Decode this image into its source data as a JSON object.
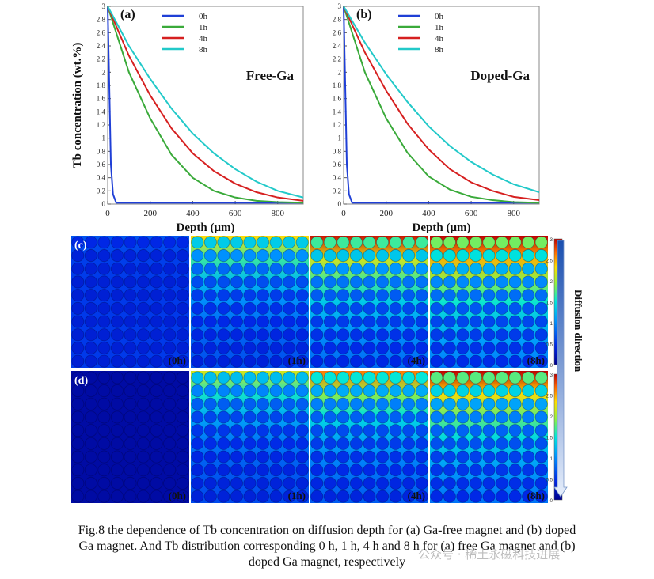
{
  "chart_data": [
    {
      "type": "line",
      "panel_label": "(a)",
      "annotation": "Free-Ga",
      "xlabel": "Depth  (μm)",
      "ylabel": "Tb concentration   (wt.%)",
      "xlim": [
        0,
        920
      ],
      "ylim": [
        0,
        3
      ],
      "xticks": [
        "0",
        "200",
        "400",
        "600",
        "800"
      ],
      "yticks": [
        "0",
        "0.2",
        "0.4",
        "0.6",
        "0.8",
        "1",
        "1.2",
        "1.4",
        "1.6",
        "1.8",
        "2",
        "2.2",
        "2.4",
        "2.6",
        "2.8",
        "3"
      ],
      "legend_position": "top-center",
      "series": [
        {
          "name": "0h",
          "color": "#1f3fd6",
          "x": [
            0,
            15,
            25,
            40,
            920
          ],
          "y": [
            3,
            0.6,
            0.15,
            0.02,
            0.02
          ]
        },
        {
          "name": "1h",
          "color": "#3aaa3a",
          "x": [
            0,
            100,
            200,
            300,
            400,
            500,
            600,
            700,
            800,
            920
          ],
          "y": [
            3,
            2.0,
            1.3,
            0.75,
            0.4,
            0.2,
            0.1,
            0.05,
            0.03,
            0.02
          ]
        },
        {
          "name": "4h",
          "color": "#d62020",
          "x": [
            0,
            100,
            200,
            300,
            400,
            500,
            600,
            700,
            800,
            920
          ],
          "y": [
            3,
            2.25,
            1.65,
            1.15,
            0.77,
            0.5,
            0.31,
            0.18,
            0.1,
            0.05
          ]
        },
        {
          "name": "8h",
          "color": "#22c9c9",
          "x": [
            0,
            100,
            200,
            300,
            400,
            500,
            600,
            700,
            800,
            920
          ],
          "y": [
            3,
            2.4,
            1.9,
            1.45,
            1.07,
            0.77,
            0.53,
            0.34,
            0.2,
            0.1
          ]
        }
      ]
    },
    {
      "type": "line",
      "panel_label": "(b)",
      "annotation": "Doped-Ga",
      "xlabel": "Depth  (μm)",
      "ylabel": "",
      "xlim": [
        0,
        920
      ],
      "ylim": [
        0,
        3
      ],
      "xticks": [
        "0",
        "200",
        "400",
        "600",
        "800"
      ],
      "yticks": [
        "0",
        "0.2",
        "0.4",
        "0.6",
        "0.8",
        "1",
        "1.2",
        "1.4",
        "1.6",
        "1.8",
        "2",
        "2.2",
        "2.4",
        "2.6",
        "2.8",
        "3"
      ],
      "legend_position": "top-center",
      "series": [
        {
          "name": "0h",
          "color": "#1f3fd6",
          "x": [
            0,
            15,
            25,
            40,
            920
          ],
          "y": [
            3,
            0.6,
            0.15,
            0.02,
            0.02
          ]
        },
        {
          "name": "1h",
          "color": "#3aaa3a",
          "x": [
            0,
            100,
            200,
            300,
            400,
            500,
            600,
            700,
            800,
            920
          ],
          "y": [
            3,
            2.0,
            1.3,
            0.78,
            0.42,
            0.22,
            0.11,
            0.06,
            0.03,
            0.02
          ]
        },
        {
          "name": "4h",
          "color": "#d62020",
          "x": [
            0,
            100,
            200,
            300,
            400,
            500,
            600,
            700,
            800,
            920
          ],
          "y": [
            3,
            2.3,
            1.72,
            1.22,
            0.83,
            0.53,
            0.33,
            0.2,
            0.11,
            0.06
          ]
        },
        {
          "name": "8h",
          "color": "#22c9c9",
          "x": [
            0,
            100,
            200,
            300,
            400,
            500,
            600,
            700,
            800,
            920
          ],
          "y": [
            3,
            2.45,
            1.97,
            1.55,
            1.18,
            0.88,
            0.64,
            0.45,
            0.3,
            0.18
          ]
        }
      ]
    }
  ],
  "simulation": {
    "rows": [
      {
        "label": "(c)",
        "intensities": [
          0.05,
          0.6,
          0.8,
          0.9
        ]
      },
      {
        "label": "(d)",
        "intensities": [
          0.0,
          0.55,
          0.7,
          0.85
        ]
      }
    ],
    "time_labels": [
      "(0h)",
      "(1h)",
      "(4h)",
      "(8h)"
    ],
    "colorbar_ticks": [
      "3",
      "2.5",
      "2",
      "1.5",
      "1",
      "0.5",
      "0"
    ],
    "side_label": "Diffusion direction"
  },
  "caption": {
    "line1": "Fig.8 the dependence of Tb concentration on diffusion depth for (a) Ga-free magnet and (b) doped",
    "line2": "Ga magnet. And Tb distribution corresponding 0 h, 1 h, 4 h and 8 h for (a) free Ga magnet and (b)",
    "line3": "doped Ga magnet, respectively"
  },
  "watermark": "公众号 · 稀土永磁科技进展"
}
